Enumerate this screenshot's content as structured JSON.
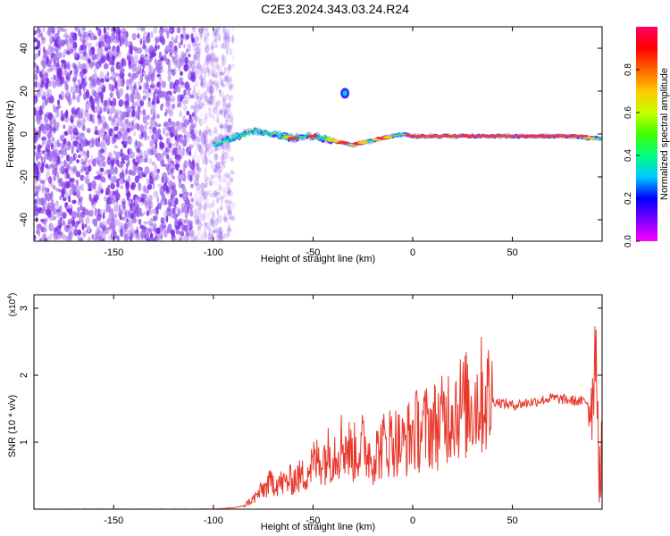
{
  "title": "C2E3.2024.343.03.24.R24",
  "colors": {
    "snr_line": "#e8382c",
    "axis": "#000000",
    "spectrum_low": "#c9a8f2",
    "spectrum_mid": "#7d2ee8"
  },
  "chart_data": [
    {
      "type": "heatmap",
      "xlabel": "Height of straight line (km)",
      "ylabel": "Frequency (Hz)",
      "xlim": [
        -190,
        95
      ],
      "ylim": [
        -50,
        50
      ],
      "xticks": [
        "-150",
        "-100",
        "-50",
        "0",
        "50"
      ],
      "xtick_values": [
        -150,
        -100,
        -50,
        0,
        50
      ],
      "yticks": [
        "40",
        "20",
        "0",
        "-20",
        "-40"
      ],
      "ytick_values": [
        40,
        20,
        0,
        -20,
        -40
      ],
      "grid": false,
      "colorbar": {
        "label": "Normalized spectral amplitude",
        "range": [
          0,
          1
        ],
        "ticks": [
          "0.0",
          "0.2",
          "0.4",
          "0.6",
          "0.8"
        ],
        "tick_values": [
          0.0,
          0.2,
          0.4,
          0.6,
          0.8
        ],
        "colormap": [
          "#ff00ff",
          "#7a00ff",
          "#0000ff",
          "#00c8ff",
          "#00ff80",
          "#40ff00",
          "#c8ff00",
          "#ffc800",
          "#ff6400",
          "#ff0000",
          "#ff0064"
        ]
      },
      "noise_region_x": [
        -190,
        -90
      ],
      "feature": {
        "description_points_x": [
          -100,
          -95,
          -90,
          -85,
          -80,
          -75,
          -70,
          -65,
          -60,
          -55,
          -50,
          -45,
          -40,
          -35,
          -30,
          -25,
          -20,
          -15,
          -10,
          -5,
          0,
          5,
          10,
          20,
          30,
          40,
          50,
          60,
          70,
          80,
          90,
          95
        ],
        "description_points_y": [
          -5,
          -3,
          -2,
          0,
          1,
          1,
          0,
          -1,
          -2,
          -1,
          -1,
          -2,
          -3,
          -4,
          -5,
          -4,
          -3,
          -2,
          -1,
          0,
          -1,
          -1,
          -1,
          -1,
          -1,
          -1,
          -1,
          -1,
          -1,
          -1,
          -2,
          -2
        ],
        "blob_x": -34,
        "blob_y": 19
      }
    },
    {
      "type": "line",
      "xlabel": "Height of straight line (km)",
      "ylabel": "SNR (10 * v/v)",
      "scale_label": "(x10",
      "scale_exponent": "4",
      "scale_close": ")",
      "xlim": [
        -190,
        95
      ],
      "ylim": [
        0,
        3.2
      ],
      "xticks": [
        "-150",
        "-100",
        "-50",
        "0",
        "50"
      ],
      "xtick_values": [
        -150,
        -100,
        -50,
        0,
        50
      ],
      "yticks": [
        "1",
        "2",
        "3"
      ],
      "ytick_values": [
        1,
        2,
        3
      ],
      "grid": false,
      "series": [
        {
          "x": [
            -190,
            -100,
            -90,
            -85,
            -80,
            -75,
            -70,
            -65,
            -60,
            -55,
            -50,
            -45,
            -40,
            -35,
            -30,
            -25,
            -20,
            -15,
            -10,
            -5,
            0,
            5,
            10,
            15,
            20,
            25,
            30,
            35,
            40,
            50,
            60,
            70,
            80,
            88,
            90,
            92,
            93,
            94,
            95
          ],
          "y": [
            0.0,
            0.0,
            0.02,
            0.05,
            0.15,
            0.3,
            0.42,
            0.38,
            0.45,
            0.5,
            0.68,
            0.78,
            0.85,
            1.0,
            0.82,
            0.95,
            0.78,
            0.95,
            1.05,
            0.95,
            1.15,
            1.2,
            1.25,
            1.3,
            1.55,
            1.52,
            1.58,
            1.7,
            1.62,
            1.55,
            1.6,
            1.66,
            1.62,
            1.6,
            1.65,
            2.6,
            1.2,
            0.35,
            0.9
          ]
        }
      ]
    }
  ]
}
